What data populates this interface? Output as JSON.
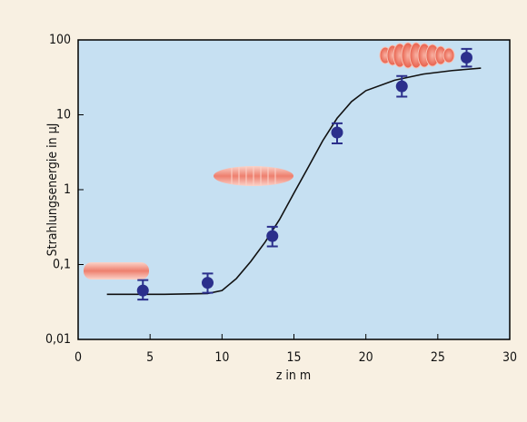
{
  "chart_data": {
    "type": "scatter",
    "xlabel": "z in m",
    "ylabel": "Strahlungsenergie in µJ",
    "xlim": [
      0,
      30
    ],
    "xticks": [
      0,
      5,
      10,
      15,
      20,
      25,
      30
    ],
    "ylim": [
      0.01,
      100
    ],
    "ylog": true,
    "yticks": [
      {
        "value": 0.01,
        "label": "0,01"
      },
      {
        "value": 0.1,
        "label": "0,1"
      },
      1,
      10,
      100
    ],
    "points": {
      "color": "#2b2f8c",
      "x": [
        4.5,
        9,
        13.5,
        18,
        22.5,
        27
      ],
      "values": [
        0.045,
        0.057,
        0.24,
        5.8,
        24,
        58
      ],
      "lower": [
        0.034,
        0.042,
        0.175,
        4.15,
        17.5,
        44
      ],
      "upper": [
        0.062,
        0.076,
        0.32,
        7.7,
        33,
        76
      ]
    },
    "curve": {
      "color": "#111111",
      "x": [
        2,
        6,
        9,
        10,
        11,
        12,
        13,
        14,
        15,
        16,
        17,
        18,
        19,
        20,
        22,
        24,
        26,
        28
      ],
      "values": [
        0.04,
        0.04,
        0.041,
        0.045,
        0.065,
        0.11,
        0.2,
        0.4,
        0.9,
        2,
        4.5,
        9,
        15,
        21,
        29,
        35,
        39,
        42
      ]
    }
  }
}
